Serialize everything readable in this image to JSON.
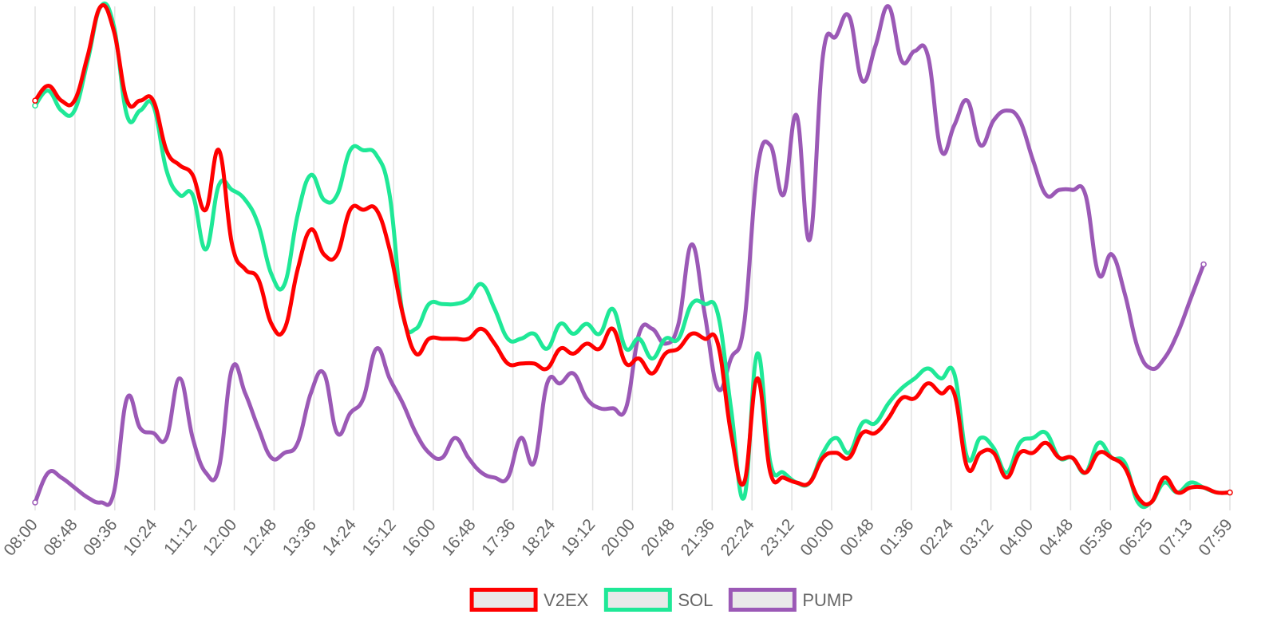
{
  "chart_data": {
    "type": "line",
    "title": "",
    "xlabel": "",
    "ylabel": "",
    "grid": "vertical",
    "legend_placement": "bottom-center",
    "y_axis_labels": "none",
    "x_ticks": [
      "08:00",
      "08:48",
      "09:36",
      "10:24",
      "11:12",
      "12:00",
      "12:48",
      "13:36",
      "14:24",
      "15:12",
      "16:00",
      "16:48",
      "17:36",
      "18:24",
      "19:12",
      "20:00",
      "20:48",
      "21:36",
      "22:24",
      "23:12",
      "00:00",
      "00:48",
      "01:36",
      "02:24",
      "03:12",
      "04:00",
      "04:48",
      "05:36",
      "06:25",
      "07:13",
      "07:59"
    ],
    "ylim": [
      0,
      100
    ],
    "series": [
      {
        "name": "V2EX",
        "color": "#ff0000",
        "points": [
          [
            0,
            81
          ],
          [
            1,
            84
          ],
          [
            2,
            81
          ],
          [
            3,
            81
          ],
          [
            4,
            90
          ],
          [
            5,
            100
          ],
          [
            6,
            95
          ],
          [
            7,
            81
          ],
          [
            8,
            81
          ],
          [
            9,
            81
          ],
          [
            10,
            71
          ],
          [
            11,
            68
          ],
          [
            12,
            66
          ],
          [
            13,
            59
          ],
          [
            14,
            71
          ],
          [
            15,
            52
          ],
          [
            16,
            47
          ],
          [
            17,
            45
          ],
          [
            18,
            36
          ],
          [
            19,
            35
          ],
          [
            20,
            47
          ],
          [
            21,
            55
          ],
          [
            22,
            50
          ],
          [
            23,
            50
          ],
          [
            24,
            59
          ],
          [
            25,
            59
          ],
          [
            26,
            59
          ],
          [
            27,
            51
          ],
          [
            28,
            38
          ],
          [
            29,
            30
          ],
          [
            30,
            33
          ],
          [
            31,
            33
          ],
          [
            32,
            33
          ],
          [
            33,
            33
          ],
          [
            34,
            35
          ],
          [
            35,
            32
          ],
          [
            36,
            28
          ],
          [
            37,
            28
          ],
          [
            38,
            28
          ],
          [
            39,
            27
          ],
          [
            40,
            31
          ],
          [
            41,
            30
          ],
          [
            42,
            32
          ],
          [
            43,
            31
          ],
          [
            44,
            35
          ],
          [
            45,
            28
          ],
          [
            46,
            29
          ],
          [
            47,
            26
          ],
          [
            48,
            30
          ],
          [
            49,
            31
          ],
          [
            50,
            34
          ],
          [
            51,
            33
          ],
          [
            52,
            32
          ],
          [
            53,
            14
          ],
          [
            54,
            4
          ],
          [
            55,
            25
          ],
          [
            56,
            6
          ],
          [
            57,
            5
          ],
          [
            58,
            4
          ],
          [
            59,
            4
          ],
          [
            60,
            9
          ],
          [
            61,
            10
          ],
          [
            62,
            9
          ],
          [
            63,
            14
          ],
          [
            64,
            14
          ],
          [
            65,
            17
          ],
          [
            66,
            21
          ],
          [
            67,
            21
          ],
          [
            68,
            24
          ],
          [
            69,
            22
          ],
          [
            70,
            22
          ],
          [
            71,
            7
          ],
          [
            72,
            10
          ],
          [
            73,
            10
          ],
          [
            74,
            5
          ],
          [
            75,
            10
          ],
          [
            76,
            10
          ],
          [
            77,
            12
          ],
          [
            78,
            9
          ],
          [
            79,
            9
          ],
          [
            80,
            6
          ],
          [
            81,
            10
          ],
          [
            82,
            9
          ],
          [
            83,
            7
          ],
          [
            84,
            1
          ],
          [
            85,
            0
          ],
          [
            86,
            5
          ],
          [
            87,
            2
          ],
          [
            88,
            3
          ],
          [
            89,
            3
          ],
          [
            90,
            2
          ],
          [
            91,
            2
          ]
        ]
      },
      {
        "name": "SOL",
        "color": "#1fe897",
        "points": [
          [
            0,
            80
          ],
          [
            1,
            83
          ],
          [
            2,
            79
          ],
          [
            3,
            79
          ],
          [
            4,
            89
          ],
          [
            5,
            100
          ],
          [
            6,
            96
          ],
          [
            7,
            78
          ],
          [
            8,
            79
          ],
          [
            9,
            80
          ],
          [
            10,
            67
          ],
          [
            11,
            62
          ],
          [
            12,
            62
          ],
          [
            13,
            51
          ],
          [
            14,
            64
          ],
          [
            15,
            63
          ],
          [
            16,
            61
          ],
          [
            17,
            56
          ],
          [
            18,
            46
          ],
          [
            19,
            44
          ],
          [
            20,
            58
          ],
          [
            21,
            66
          ],
          [
            22,
            61
          ],
          [
            23,
            62
          ],
          [
            24,
            71
          ],
          [
            25,
            71
          ],
          [
            26,
            70
          ],
          [
            27,
            62
          ],
          [
            28,
            38
          ],
          [
            29,
            35
          ],
          [
            30,
            40
          ],
          [
            31,
            40
          ],
          [
            32,
            40
          ],
          [
            33,
            41
          ],
          [
            34,
            44
          ],
          [
            35,
            39
          ],
          [
            36,
            33
          ],
          [
            37,
            33
          ],
          [
            38,
            34
          ],
          [
            39,
            31
          ],
          [
            40,
            36
          ],
          [
            41,
            34
          ],
          [
            42,
            36
          ],
          [
            43,
            34
          ],
          [
            44,
            39
          ],
          [
            45,
            31
          ],
          [
            46,
            33
          ],
          [
            47,
            29
          ],
          [
            48,
            33
          ],
          [
            49,
            33
          ],
          [
            50,
            40
          ],
          [
            51,
            40
          ],
          [
            52,
            38
          ],
          [
            53,
            19
          ],
          [
            54,
            1
          ],
          [
            55,
            30
          ],
          [
            56,
            8
          ],
          [
            57,
            6
          ],
          [
            58,
            4
          ],
          [
            59,
            4
          ],
          [
            60,
            10
          ],
          [
            61,
            13
          ],
          [
            62,
            10
          ],
          [
            63,
            16
          ],
          [
            64,
            16
          ],
          [
            65,
            20
          ],
          [
            66,
            23
          ],
          [
            67,
            25
          ],
          [
            68,
            27
          ],
          [
            69,
            25
          ],
          [
            70,
            26
          ],
          [
            71,
            9
          ],
          [
            72,
            13
          ],
          [
            73,
            11
          ],
          [
            74,
            6
          ],
          [
            75,
            12
          ],
          [
            76,
            13
          ],
          [
            77,
            14
          ],
          [
            78,
            9
          ],
          [
            79,
            9
          ],
          [
            80,
            6
          ],
          [
            81,
            12
          ],
          [
            82,
            9
          ],
          [
            83,
            8
          ],
          [
            84,
            0
          ],
          [
            85,
            0
          ],
          [
            86,
            4
          ],
          [
            87,
            2
          ],
          [
            88,
            4
          ],
          [
            89,
            3
          ],
          [
            90,
            2
          ],
          [
            91,
            2
          ]
        ]
      },
      {
        "name": "PUMP",
        "color": "#9b59b6",
        "points": [
          [
            0,
            0
          ],
          [
            1,
            6
          ],
          [
            2,
            5
          ],
          [
            3,
            3
          ],
          [
            4,
            1
          ],
          [
            5,
            0
          ],
          [
            6,
            2
          ],
          [
            7,
            21
          ],
          [
            8,
            15
          ],
          [
            9,
            14
          ],
          [
            10,
            13
          ],
          [
            11,
            25
          ],
          [
            12,
            13
          ],
          [
            13,
            6
          ],
          [
            14,
            7
          ],
          [
            15,
            27
          ],
          [
            16,
            22
          ],
          [
            17,
            15
          ],
          [
            18,
            9
          ],
          [
            19,
            10
          ],
          [
            20,
            12
          ],
          [
            21,
            22
          ],
          [
            22,
            26
          ],
          [
            23,
            14
          ],
          [
            24,
            18
          ],
          [
            25,
            21
          ],
          [
            26,
            31
          ],
          [
            27,
            25
          ],
          [
            28,
            20
          ],
          [
            29,
            14
          ],
          [
            30,
            10
          ],
          [
            31,
            9
          ],
          [
            32,
            13
          ],
          [
            33,
            9
          ],
          [
            34,
            6
          ],
          [
            35,
            5
          ],
          [
            36,
            5
          ],
          [
            37,
            13
          ],
          [
            38,
            8
          ],
          [
            39,
            24
          ],
          [
            40,
            24
          ],
          [
            41,
            26
          ],
          [
            42,
            21
          ],
          [
            43,
            19
          ],
          [
            44,
            19
          ],
          [
            45,
            19
          ],
          [
            46,
            34
          ],
          [
            47,
            35
          ],
          [
            48,
            32
          ],
          [
            49,
            36
          ],
          [
            50,
            52
          ],
          [
            51,
            38
          ],
          [
            52,
            23
          ],
          [
            53,
            29
          ],
          [
            54,
            36
          ],
          [
            55,
            67
          ],
          [
            56,
            72
          ],
          [
            57,
            62
          ],
          [
            58,
            78
          ],
          [
            59,
            53
          ],
          [
            60,
            90
          ],
          [
            61,
            94
          ],
          [
            62,
            98
          ],
          [
            63,
            85
          ],
          [
            64,
            92
          ],
          [
            65,
            100
          ],
          [
            66,
            89
          ],
          [
            67,
            91
          ],
          [
            68,
            90
          ],
          [
            69,
            71
          ],
          [
            70,
            76
          ],
          [
            71,
            81
          ],
          [
            72,
            72
          ],
          [
            73,
            77
          ],
          [
            74,
            79
          ],
          [
            75,
            77
          ],
          [
            76,
            69
          ],
          [
            77,
            62
          ],
          [
            78,
            63
          ],
          [
            79,
            63
          ],
          [
            80,
            62
          ],
          [
            81,
            46
          ],
          [
            82,
            50
          ],
          [
            83,
            42
          ],
          [
            84,
            31
          ],
          [
            85,
            27
          ],
          [
            86,
            29
          ],
          [
            87,
            34
          ],
          [
            88,
            41
          ],
          [
            89,
            48
          ]
        ]
      }
    ]
  }
}
